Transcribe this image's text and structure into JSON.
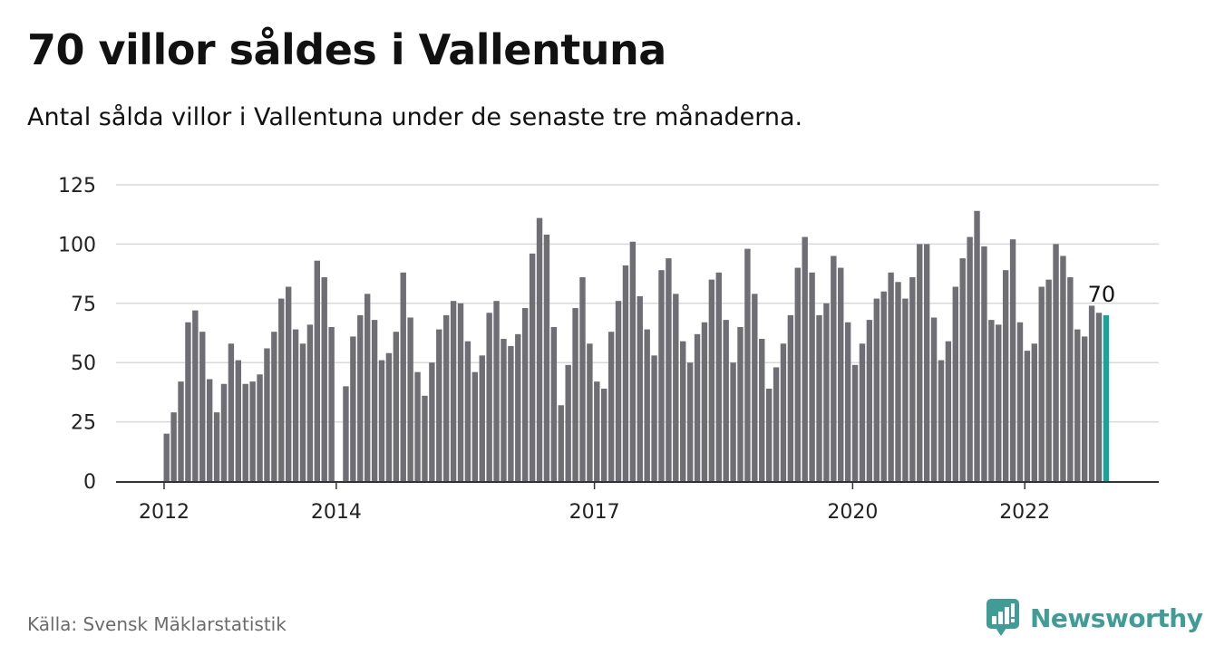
{
  "title": "70 villor såldes i Vallentuna",
  "subtitle": "Antal sålda villor i Vallentuna under de senaste tre månaderna.",
  "source": "Källa: Svensk Mäklarstatistik",
  "brand": {
    "name": "Newsworthy",
    "icon": "newsworthy-logo-icon"
  },
  "colors": {
    "bar": "#6f6e75",
    "highlight": "#1aa39a",
    "grid": "#d9d9d9",
    "axis": "#333333",
    "brand": "#3f9c97"
  },
  "chart_data": {
    "type": "bar",
    "title": "70 villor såldes i Vallentuna",
    "subtitle": "Antal sålda villor i Vallentuna under de senaste tre månaderna.",
    "xlabel": "",
    "ylabel": "",
    "ylim": [
      0,
      125
    ],
    "yticks": [
      0,
      25,
      50,
      75,
      100,
      125
    ],
    "xtick_labels": [
      "2012",
      "2014",
      "2017",
      "2020",
      "2022"
    ],
    "grid": true,
    "highlight_label": "70",
    "values": [
      20,
      29,
      42,
      67,
      72,
      63,
      43,
      29,
      41,
      58,
      51,
      41,
      42,
      45,
      56,
      63,
      77,
      82,
      64,
      58,
      66,
      93,
      86,
      65,
      null,
      40,
      61,
      70,
      79,
      68,
      51,
      54,
      63,
      88,
      69,
      46,
      36,
      50,
      64,
      70,
      76,
      75,
      59,
      46,
      53,
      71,
      76,
      60,
      57,
      62,
      73,
      96,
      111,
      104,
      65,
      32,
      49,
      73,
      86,
      58,
      42,
      39,
      63,
      76,
      91,
      101,
      78,
      64,
      53,
      89,
      94,
      79,
      59,
      50,
      62,
      67,
      85,
      88,
      68,
      50,
      65,
      98,
      79,
      60,
      39,
      48,
      58,
      70,
      90,
      103,
      88,
      70,
      75,
      95,
      90,
      67,
      49,
      58,
      68,
      77,
      80,
      88,
      84,
      77,
      86,
      100,
      100,
      69,
      51,
      59,
      82,
      94,
      103,
      114,
      99,
      68,
      66,
      89,
      102,
      67,
      55,
      58,
      82,
      85,
      100,
      95,
      86,
      64,
      61,
      74,
      71,
      70
    ]
  }
}
